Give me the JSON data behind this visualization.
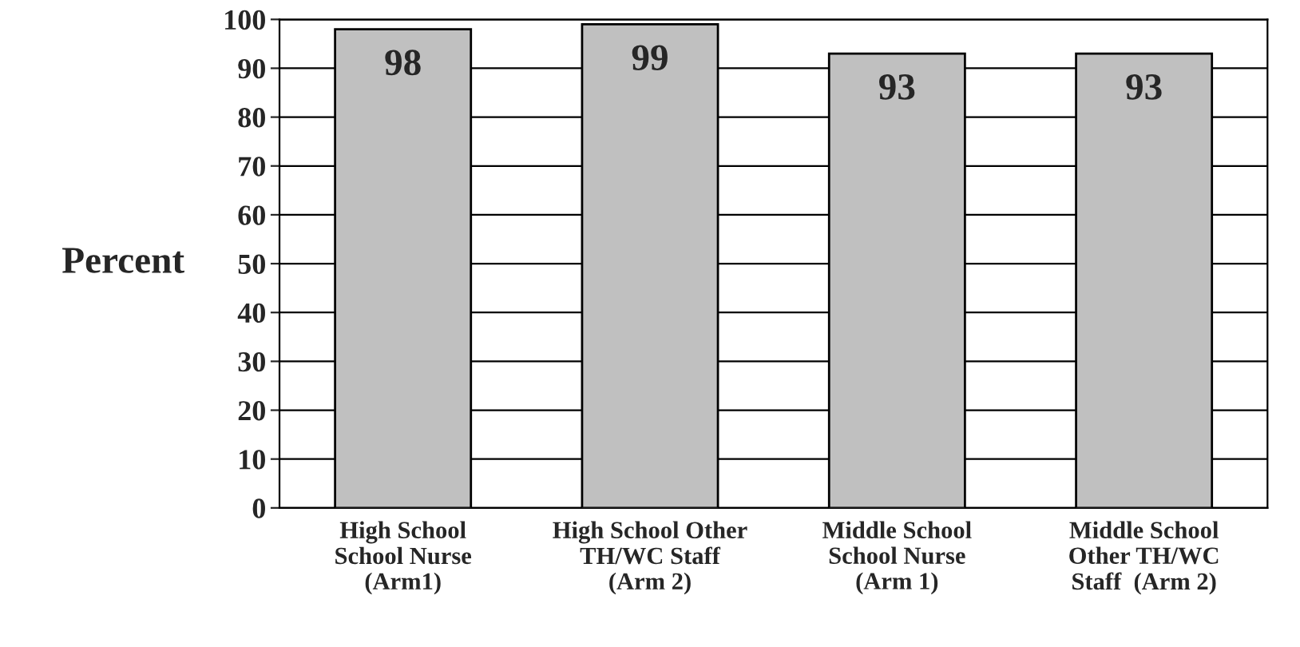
{
  "chart_data": {
    "type": "bar",
    "ylabel": "Percent",
    "categories": [
      "High School\nSchool Nurse\n(Arm1)",
      "High School Other\nTH/WC Staff\n(Arm 2)",
      "Middle School\nSchool Nurse\n(Arm 1)",
      "Middle School\nOther TH/WC\nStaff  (Arm 2)"
    ],
    "values": [
      98,
      99,
      93,
      93
    ],
    "color": "#c0c0c0",
    "ylim": [
      0,
      100
    ],
    "yticks": [
      0,
      10,
      20,
      30,
      40,
      50,
      60,
      70,
      80,
      90,
      100
    ],
    "grid": "y",
    "data_labels": true
  }
}
